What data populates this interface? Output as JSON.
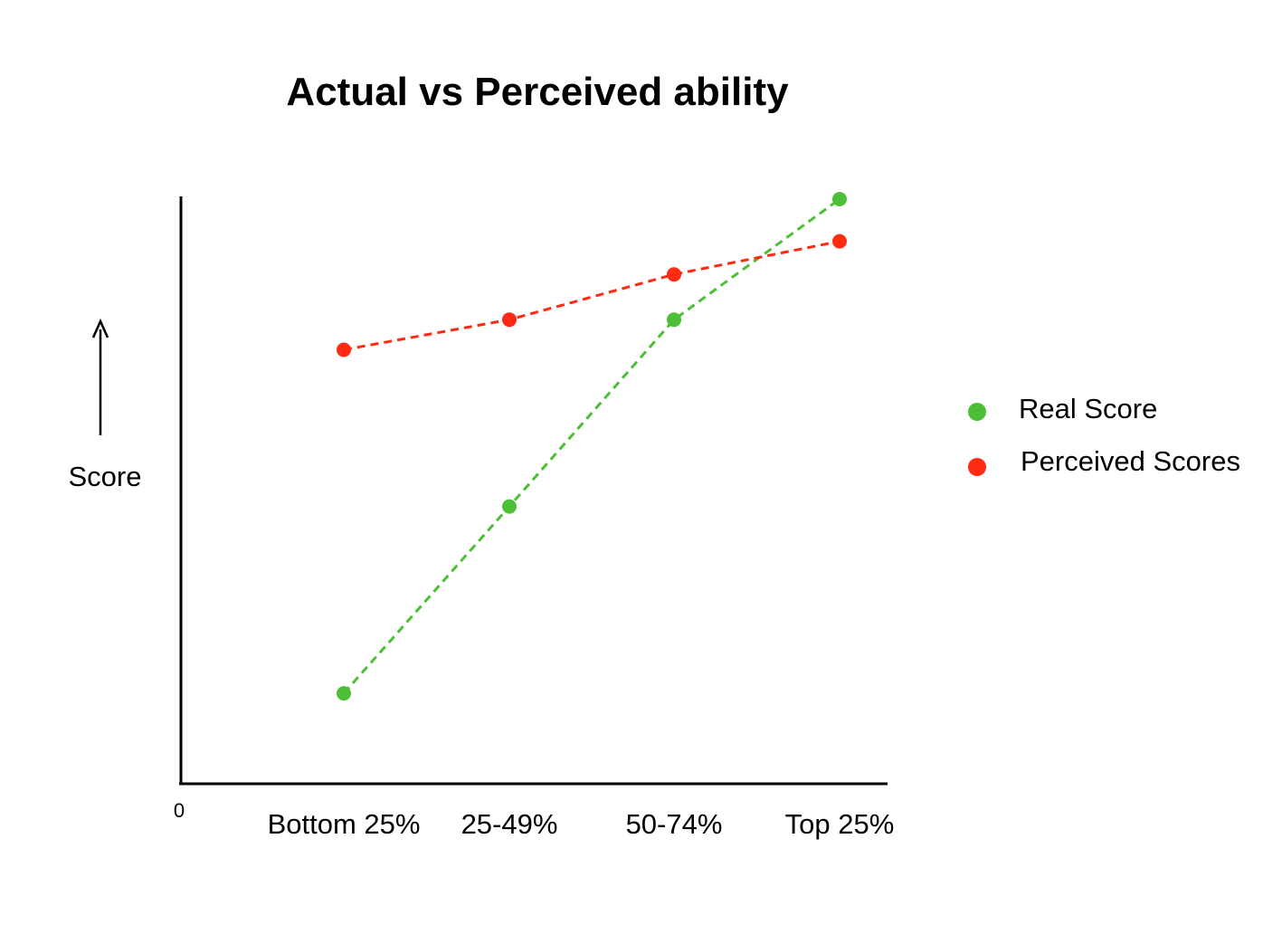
{
  "chart_data": {
    "type": "line",
    "title": "Actual vs Perceived ability",
    "xlabel": "",
    "ylabel": "Score",
    "origin_label": "0",
    "categories": [
      "Bottom 25%",
      "25-49%",
      "50-74%",
      "Top 25%"
    ],
    "ylim": [
      0,
      100
    ],
    "grid": false,
    "legend_position": "right",
    "series": [
      {
        "name": "Real Score",
        "color": "#4cbf36",
        "line_style": "dashed",
        "values": [
          15,
          46,
          77,
          97
        ]
      },
      {
        "name": "Perceived Scores",
        "color": "#ff2a12",
        "line_style": "dashed",
        "values": [
          72,
          77,
          84.5,
          90
        ]
      }
    ]
  }
}
